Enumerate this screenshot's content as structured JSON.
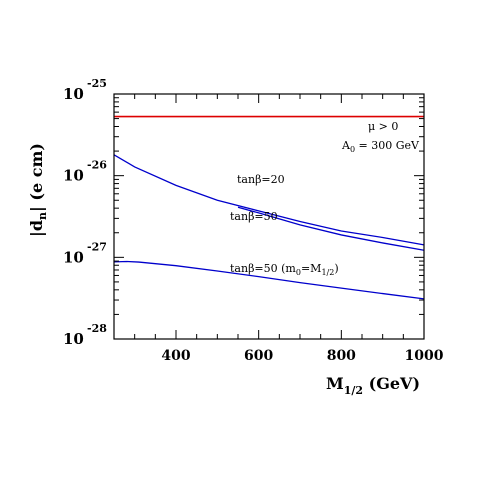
{
  "chart_data": {
    "type": "line",
    "title": "",
    "xlabel": {
      "main": "M",
      "sub": "1/2",
      "unit": "(GeV)"
    },
    "ylabel": {
      "prefix": "|d",
      "sub": "n",
      "suffix": "| (e cm)"
    },
    "xlim": [
      250,
      1000
    ],
    "ylim": [
      1e-28,
      1e-25
    ],
    "yscale": "log",
    "xticks": [
      400,
      600,
      800,
      1000
    ],
    "yticks": [
      {
        "value": 1e-25,
        "base": "10",
        "exp": "-25"
      },
      {
        "value": 1e-26,
        "base": "10",
        "exp": "-26"
      },
      {
        "value": 1e-27,
        "base": "10",
        "exp": "-27"
      },
      {
        "value": 1e-28,
        "base": "10",
        "exp": "-28"
      }
    ],
    "grid": false,
    "legend": "none",
    "annotations": {
      "mu": "μ > 0",
      "a0": {
        "main": "A",
        "sub": "0",
        "rest": " = 300 GeV"
      }
    },
    "series": [
      {
        "id": "bound",
        "color": "#dd0000",
        "x": [
          250,
          1000
        ],
        "y": [
          5.3e-26,
          5.3e-26
        ]
      },
      {
        "id": "tb20",
        "label": "tanβ=20",
        "color": "#0000cc",
        "x": [
          250,
          300,
          400,
          500,
          600,
          700,
          800,
          900,
          1000
        ],
        "y": [
          1.8e-26,
          1.28e-26,
          7.6e-27,
          5e-27,
          3.7e-27,
          2.75e-27,
          2.1e-27,
          1.75e-27,
          1.42e-27
        ]
      },
      {
        "id": "tb50",
        "label": "tanβ=50",
        "color": "#0000cc",
        "x": [
          550,
          600,
          700,
          800,
          900,
          1000
        ],
        "y": [
          4.1e-27,
          3.5e-27,
          2.5e-27,
          1.88e-27,
          1.5e-27,
          1.22e-27
        ]
      },
      {
        "id": "tb50m0",
        "label": {
          "main": "tanβ=50 (m",
          "sub1": "0",
          "mid": "=M",
          "sub2": "1/2",
          "end": ")"
        },
        "color": "#0000cc",
        "x": [
          250,
          280,
          310,
          400,
          500,
          600,
          700,
          800,
          900,
          1000
        ],
        "y": [
          8.8e-28,
          8.9e-28,
          8.75e-28,
          7.9e-28,
          6.8e-28,
          5.8e-28,
          4.9e-28,
          4.2e-28,
          3.6e-28,
          3.1e-28
        ]
      }
    ]
  }
}
